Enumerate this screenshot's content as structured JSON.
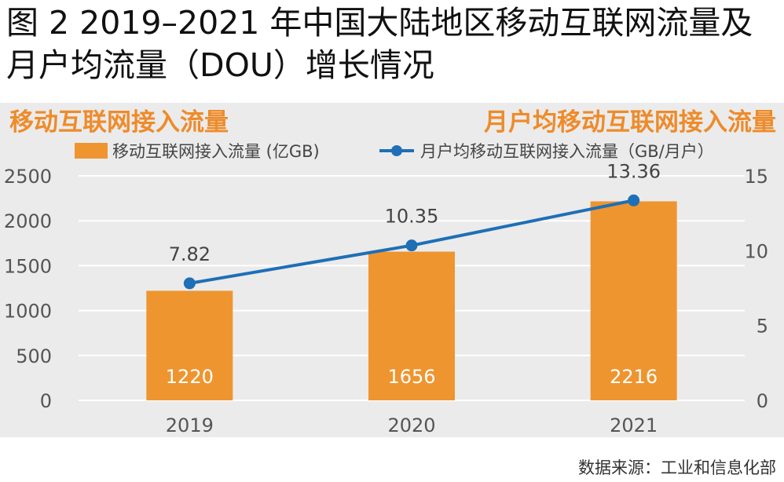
{
  "figure": {
    "title": "图 2 2019–2021 年中国大陆地区移动互联网流量及月户均流量（DOU）增长情况",
    "left_heading": "移动互联网接入流量",
    "right_heading": "月户均移动互联网接入流量",
    "source": "数据来源：工业和信息化部"
  },
  "colors": {
    "bar": "#ee9530",
    "line": "#1e6fb6",
    "heading": "#ee8b2a",
    "panel": "#ebebeb"
  },
  "chart_data": {
    "type": "bar",
    "categories": [
      "2019",
      "2020",
      "2021"
    ],
    "series": [
      {
        "name": "移动互联网接入流量 (亿GB)",
        "type": "bar",
        "axis": "left",
        "values": [
          1220,
          1656,
          2216
        ]
      },
      {
        "name": "月户均移动互联网接入流量（GB/月户）",
        "type": "line",
        "axis": "right",
        "values": [
          7.82,
          10.35,
          13.36
        ]
      }
    ],
    "y_left": {
      "range": [
        0,
        2500
      ],
      "ticks": [
        "0",
        "500",
        "1000",
        "1500",
        "2000",
        "2500"
      ]
    },
    "y_right": {
      "range": [
        0,
        15
      ],
      "ticks": [
        "0",
        "5",
        "10",
        "15"
      ]
    },
    "bar_labels": [
      "1220",
      "1656",
      "2216"
    ],
    "line_labels": [
      "7.82",
      "10.35",
      "13.36"
    ],
    "grid": true,
    "legend": "top"
  }
}
